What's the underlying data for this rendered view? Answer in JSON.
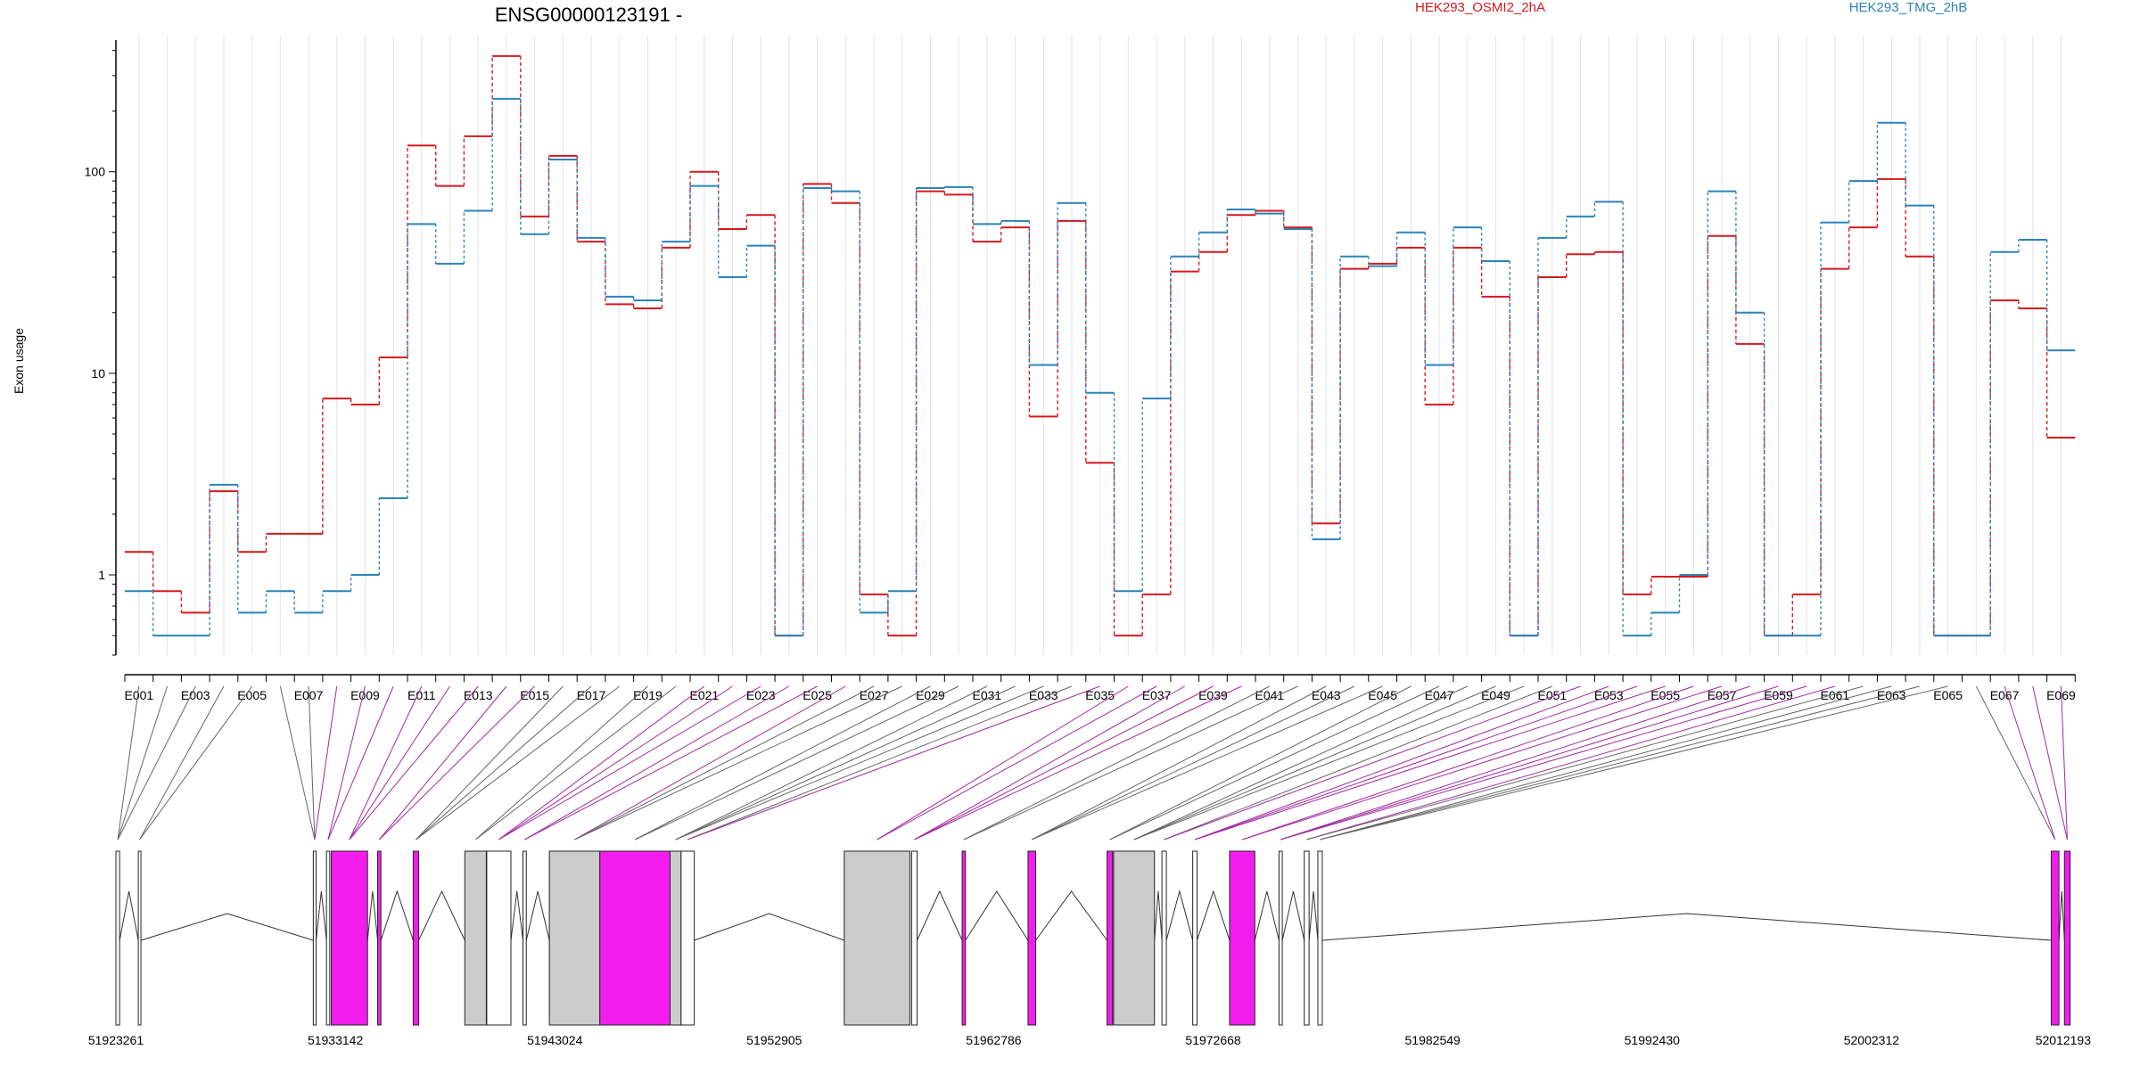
{
  "chart_data": {
    "type": "line",
    "title": "ENSG00000123191 -",
    "ylabel": "Exon usage",
    "yscale": "log",
    "ylim": [
      0.4,
      450
    ],
    "yticks": [
      1,
      10,
      100
    ],
    "colors": {
      "HEK293_OSMI2_2hA": "#d7191c",
      "HEK293_TMG_2hB": "#2b83ba",
      "flagged_exon": "#f21ded",
      "exon_gray": "#cccccc"
    },
    "series": [
      {
        "name": "HEK293_OSMI2_2hA",
        "values": [
          1.3,
          0.83,
          0.65,
          2.6,
          1.3,
          1.6,
          1.6,
          7.5,
          7.0,
          12.0,
          135,
          85,
          150,
          375,
          60,
          120,
          45,
          22,
          21,
          42,
          100,
          52,
          61,
          0.5,
          87,
          70,
          0.8,
          0.5,
          80,
          77,
          45,
          53,
          6.1,
          57,
          3.6,
          0.5,
          0.8,
          32,
          40,
          61,
          64,
          53,
          1.8,
          33,
          35,
          42,
          7.0,
          42,
          24,
          0.5,
          30,
          39,
          40,
          0.8,
          0.98,
          0.98,
          48,
          14,
          0.5,
          0.8,
          33,
          53,
          92,
          38,
          0.5,
          0.5,
          23,
          21,
          4.8
        ]
      },
      {
        "name": "HEK293_TMG_2hB",
        "values": [
          0.83,
          0.5,
          0.5,
          2.8,
          0.65,
          0.83,
          0.65,
          0.83,
          1.0,
          2.4,
          55,
          35,
          64,
          230,
          49,
          115,
          47,
          24,
          23,
          45,
          85,
          30,
          43,
          0.5,
          83,
          80,
          0.65,
          0.83,
          83,
          84,
          55,
          57,
          11,
          70,
          8.0,
          0.83,
          7.5,
          38,
          50,
          65,
          62,
          52,
          1.5,
          38,
          34,
          50,
          11,
          53,
          36,
          0.5,
          47,
          60,
          71,
          0.5,
          0.65,
          1.0,
          80,
          20,
          0.5,
          0.5,
          56,
          90,
          175,
          68,
          0.5,
          0.5,
          40,
          46,
          13
        ]
      }
    ],
    "exon_labels": [
      "E001",
      "E003",
      "E005",
      "E007",
      "E009",
      "E011",
      "E013",
      "E015",
      "E017",
      "E019",
      "E021",
      "E023",
      "E025",
      "E027",
      "E029",
      "E031",
      "E033",
      "E035",
      "E037",
      "E039",
      "E041",
      "E043",
      "E045",
      "E047",
      "E049",
      "E051",
      "E053",
      "E055",
      "E057",
      "E059",
      "E061",
      "E063",
      "E065",
      "E067",
      "E069"
    ],
    "exon_count": 69,
    "flagged_exons": [
      8,
      9,
      10,
      11,
      12,
      13,
      14,
      15,
      21,
      22,
      23,
      24,
      25,
      26,
      35,
      36,
      37,
      38,
      39,
      40,
      52,
      53,
      54,
      55,
      56,
      57,
      58,
      59,
      60,
      61,
      67,
      68,
      69
    ],
    "genomic_coordinates": [
      "51923261",
      "51933142",
      "51943024",
      "51952905",
      "51962786",
      "51972668",
      "51982549",
      "51992430",
      "52002312",
      "52012193"
    ],
    "genomic_range": [
      51923261,
      52012193
    ],
    "gene_model": [
      {
        "start": 51923261,
        "end": 51923430,
        "fill": "none"
      },
      {
        "start": 51924280,
        "end": 51924400,
        "fill": "none"
      },
      {
        "start": 51932250,
        "end": 51932380,
        "fill": "none"
      },
      {
        "start": 51932850,
        "end": 51933000,
        "fill": "none"
      },
      {
        "start": 51933070,
        "end": 51934720,
        "fill": "magenta"
      },
      {
        "start": 51935180,
        "end": 51935330,
        "fill": "magenta"
      },
      {
        "start": 51936800,
        "end": 51937050,
        "fill": "magenta"
      },
      {
        "start": 51939150,
        "end": 51940130,
        "fill": "gray"
      },
      {
        "start": 51940150,
        "end": 51941250,
        "fill": "none"
      },
      {
        "start": 51941800,
        "end": 51941950,
        "fill": "none"
      },
      {
        "start": 51943000,
        "end": 51945300,
        "fill": "gray"
      },
      {
        "start": 51945300,
        "end": 51948500,
        "fill": "magenta"
      },
      {
        "start": 51948500,
        "end": 51949000,
        "fill": "gray"
      },
      {
        "start": 51949000,
        "end": 51949600,
        "fill": "none"
      },
      {
        "start": 51956430,
        "end": 51959420,
        "fill": "gray"
      },
      {
        "start": 51959500,
        "end": 51959750,
        "fill": "none"
      },
      {
        "start": 51961800,
        "end": 51961950,
        "fill": "magenta"
      },
      {
        "start": 51964800,
        "end": 51965150,
        "fill": "magenta"
      },
      {
        "start": 51968400,
        "end": 51968650,
        "fill": "magenta"
      },
      {
        "start": 51968700,
        "end": 51970560,
        "fill": "gray"
      },
      {
        "start": 51970900,
        "end": 51971100,
        "fill": "none"
      },
      {
        "start": 51972300,
        "end": 51972500,
        "fill": "none"
      },
      {
        "start": 51973980,
        "end": 51975130,
        "fill": "magenta"
      },
      {
        "start": 51976230,
        "end": 51976380,
        "fill": "none"
      },
      {
        "start": 51977380,
        "end": 51977600,
        "fill": "none"
      },
      {
        "start": 51978000,
        "end": 51978200,
        "fill": "none"
      },
      {
        "start": 52011400,
        "end": 52011750,
        "fill": "magenta"
      },
      {
        "start": 52012000,
        "end": 52012260,
        "fill": "magenta"
      }
    ]
  }
}
